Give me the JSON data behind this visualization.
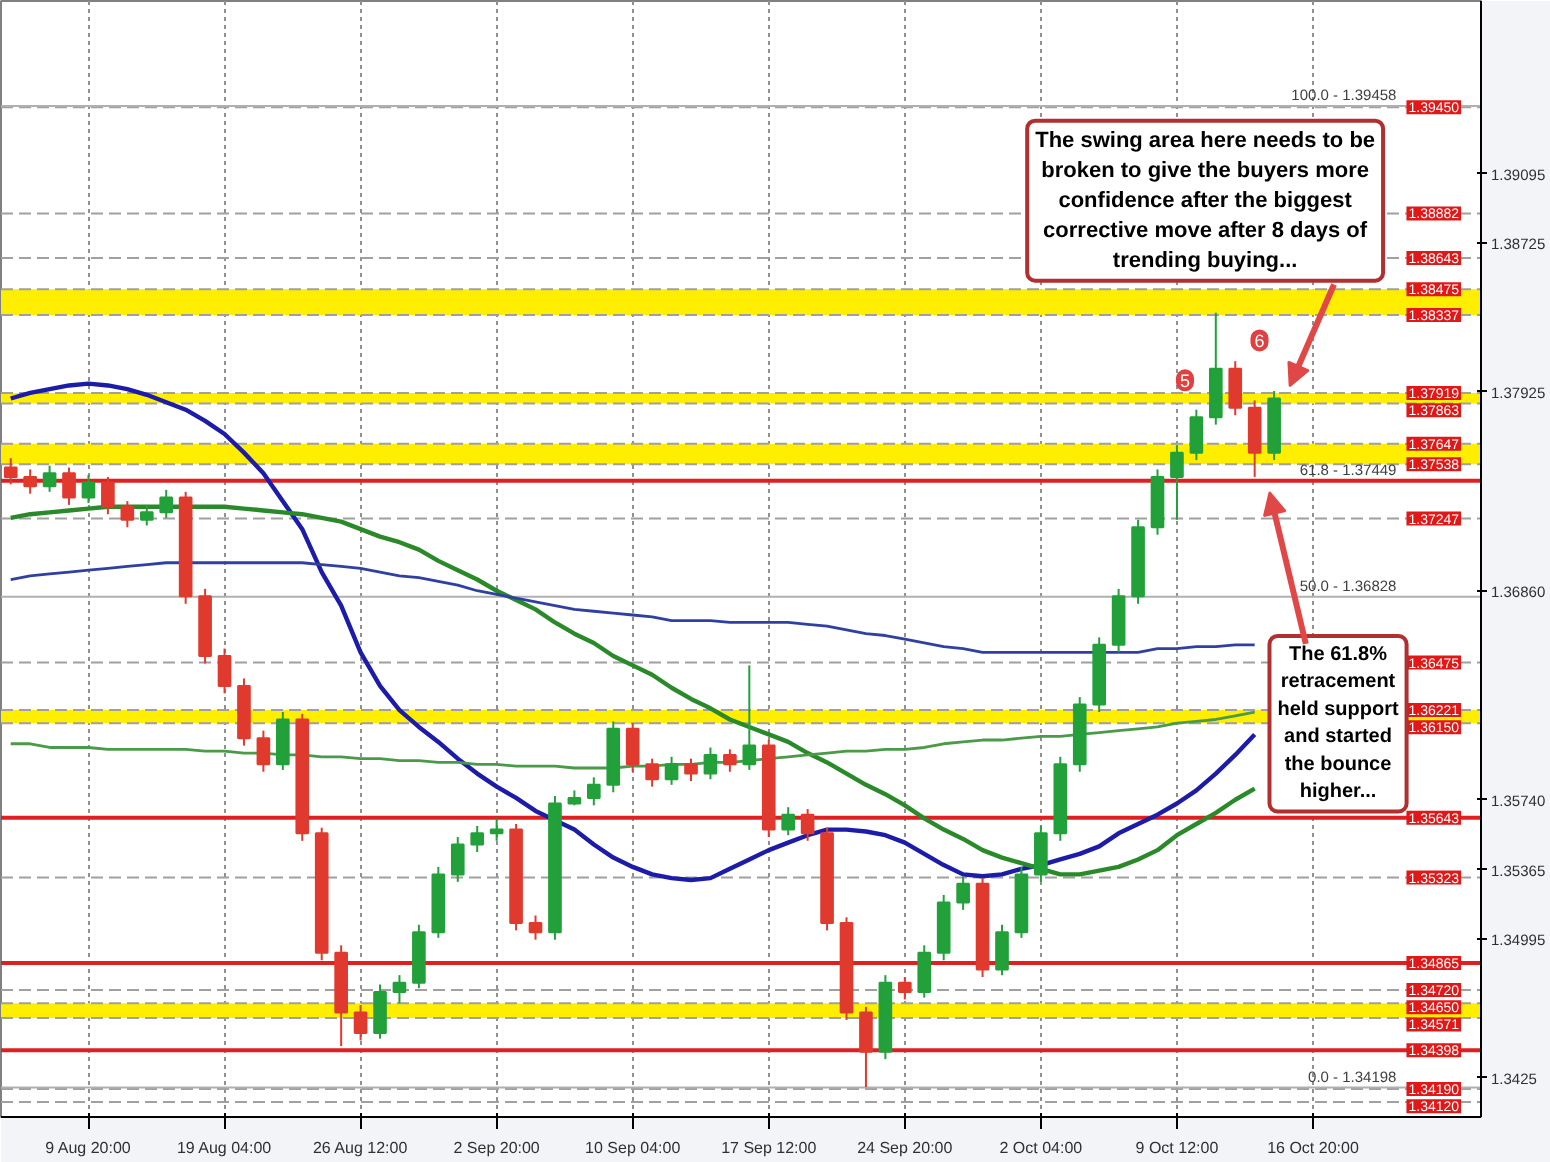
{
  "chart_data": {
    "type": "candlestick",
    "categories": [
      null,
      null,
      null,
      null,
      "9 Aug 20:00",
      null,
      null,
      null,
      null,
      null,
      null,
      "19 Aug 04:00",
      null,
      null,
      null,
      null,
      null,
      null,
      "26 Aug 12:00",
      null,
      null,
      null,
      null,
      null,
      null,
      "2 Sep 20:00",
      null,
      null,
      null,
      null,
      null,
      null,
      "10 Sep 04:00",
      null,
      null,
      null,
      null,
      null,
      null,
      "17 Sep 12:00",
      null,
      null,
      null,
      null,
      null,
      null,
      "24 Sep 20:00",
      null,
      null,
      null,
      null,
      null,
      null,
      "2 Oct 04:00",
      null,
      null,
      null,
      null,
      null,
      null,
      "9 Oct 12:00",
      null,
      null,
      null,
      null,
      null,
      null,
      "16 Oct 20:00",
      null,
      null,
      null,
      null
    ],
    "ohlc": [
      [
        1.3752,
        1.3757,
        1.3743,
        1.3747
      ],
      [
        1.3747,
        1.3751,
        1.3738,
        1.3742
      ],
      [
        1.3742,
        1.3753,
        1.3739,
        1.3749
      ],
      [
        1.3749,
        1.3752,
        1.3732,
        1.3736
      ],
      [
        1.3736,
        1.3748,
        1.3733,
        1.3744
      ],
      [
        1.3744,
        1.3747,
        1.3727,
        1.3731
      ],
      [
        1.3731,
        1.3734,
        1.372,
        1.3724
      ],
      [
        1.3724,
        1.3732,
        1.3721,
        1.3728
      ],
      [
        1.3728,
        1.374,
        1.3725,
        1.3736
      ],
      [
        1.3736,
        1.3739,
        1.3679,
        1.3683
      ],
      [
        1.3683,
        1.3687,
        1.3647,
        1.3651
      ],
      [
        1.3651,
        1.3655,
        1.3631,
        1.3635
      ],
      [
        1.3635,
        1.3639,
        1.3603,
        1.3607
      ],
      [
        1.3607,
        1.3611,
        1.3589,
        1.3593
      ],
      [
        1.3593,
        1.3621,
        1.359,
        1.3617
      ],
      [
        1.3617,
        1.362,
        1.3552,
        1.3556
      ],
      [
        1.3556,
        1.3559,
        1.3488,
        1.3492
      ],
      [
        1.3492,
        1.3496,
        1.3442,
        1.346
      ],
      [
        1.346,
        1.3464,
        1.3445,
        1.3449
      ],
      [
        1.3449,
        1.3475,
        1.3446,
        1.3471
      ],
      [
        1.3471,
        1.348,
        1.3465,
        1.3476
      ],
      [
        1.3476,
        1.3507,
        1.3473,
        1.3503
      ],
      [
        1.3503,
        1.3538,
        1.35,
        1.3534
      ],
      [
        1.3534,
        1.3554,
        1.353,
        1.355
      ],
      [
        1.355,
        1.356,
        1.3546,
        1.3556
      ],
      [
        1.3556,
        1.3564,
        1.3552,
        1.3558
      ],
      [
        1.3558,
        1.3561,
        1.3504,
        1.3508
      ],
      [
        1.3508,
        1.3512,
        1.3499,
        1.3503
      ],
      [
        1.3503,
        1.3576,
        1.3499,
        1.3572
      ],
      [
        1.3572,
        1.3579,
        1.3571,
        1.3575
      ],
      [
        1.3575,
        1.3586,
        1.3571,
        1.3582
      ],
      [
        1.3582,
        1.3616,
        1.3578,
        1.3612
      ],
      [
        1.3612,
        1.3615,
        1.3589,
        1.3593
      ],
      [
        1.3593,
        1.3596,
        1.3581,
        1.3585
      ],
      [
        1.3585,
        1.3597,
        1.3582,
        1.3593
      ],
      [
        1.3593,
        1.3596,
        1.3584,
        1.3588
      ],
      [
        1.3588,
        1.3602,
        1.3585,
        1.3598
      ],
      [
        1.3598,
        1.3601,
        1.3589,
        1.3593
      ],
      [
        1.3593,
        1.3646,
        1.359,
        1.3603
      ],
      [
        1.3603,
        1.3606,
        1.3554,
        1.3558
      ],
      [
        1.3558,
        1.357,
        1.3555,
        1.3566
      ],
      [
        1.3566,
        1.3569,
        1.3552,
        1.3556
      ],
      [
        1.3556,
        1.3559,
        1.3504,
        1.3508
      ],
      [
        1.3508,
        1.3511,
        1.3456,
        1.346
      ],
      [
        1.346,
        1.3463,
        1.342,
        1.3439
      ],
      [
        1.3439,
        1.348,
        1.3435,
        1.3476
      ],
      [
        1.3476,
        1.3479,
        1.3467,
        1.3471
      ],
      [
        1.3471,
        1.3496,
        1.3468,
        1.3492
      ],
      [
        1.3492,
        1.3523,
        1.3488,
        1.3519
      ],
      [
        1.3519,
        1.3533,
        1.3515,
        1.3529
      ],
      [
        1.3529,
        1.3532,
        1.3479,
        1.3483
      ],
      [
        1.3483,
        1.3507,
        1.348,
        1.3503
      ],
      [
        1.3503,
        1.3538,
        1.35,
        1.3534
      ],
      [
        1.3534,
        1.356,
        1.353,
        1.3556
      ],
      [
        1.3556,
        1.3597,
        1.3552,
        1.3593
      ],
      [
        1.3593,
        1.3629,
        1.3589,
        1.3625
      ],
      [
        1.3625,
        1.3661,
        1.3621,
        1.3657
      ],
      [
        1.3657,
        1.3687,
        1.3653,
        1.3683
      ],
      [
        1.3683,
        1.3724,
        1.3679,
        1.372
      ],
      [
        1.372,
        1.3751,
        1.3716,
        1.3747
      ],
      [
        1.3747,
        1.3764,
        1.3724,
        1.376
      ],
      [
        1.376,
        1.3783,
        1.3756,
        1.3779
      ],
      [
        1.3779,
        1.3835,
        1.3775,
        1.3805
      ],
      [
        1.3805,
        1.3809,
        1.378,
        1.3784
      ],
      [
        1.3784,
        1.3788,
        1.3747,
        1.376
      ],
      [
        1.376,
        1.3793,
        1.3756,
        1.3789
      ],
      null,
      null,
      null,
      null,
      null,
      null
    ],
    "series": [
      {
        "type": "line",
        "color": "#1c1ca8",
        "values": [
          1.3789,
          1.3792,
          1.3794,
          1.3796,
          1.3797,
          1.3796,
          1.3794,
          1.3791,
          1.3787,
          1.3783,
          1.3777,
          1.377,
          1.376,
          1.3749,
          1.3734,
          1.3719,
          1.3696,
          1.3678,
          1.3653,
          1.3635,
          1.3622,
          1.3613,
          1.3605,
          1.3596,
          1.3588,
          1.3581,
          1.3575,
          1.3568,
          1.3563,
          1.3558,
          1.355,
          1.3543,
          1.3538,
          1.3534,
          1.3532,
          1.3531,
          1.3532,
          1.3537,
          1.3542,
          1.3547,
          1.3551,
          1.3555,
          1.3558,
          1.3558,
          1.3557,
          1.3555,
          1.3551,
          1.3545,
          1.3539,
          1.3534,
          1.3533,
          1.3534,
          1.3537,
          1.3539,
          1.3542,
          1.3545,
          1.3549,
          1.3556,
          1.3561,
          1.3566,
          1.3572,
          1.3579,
          1.3588,
          1.3598,
          1.3609,
          null,
          null,
          null,
          null,
          null,
          null,
          null
        ]
      },
      {
        "type": "line",
        "color": "#2a8a2a",
        "values": [
          1.3725,
          1.3727,
          1.3728,
          1.3729,
          1.373,
          1.3731,
          1.3731,
          1.3731,
          1.3731,
          1.3731,
          1.3731,
          1.3731,
          1.373,
          1.3729,
          1.3728,
          1.3727,
          1.3725,
          1.3723,
          1.3719,
          1.3715,
          1.3712,
          1.3708,
          1.3702,
          1.3697,
          1.3692,
          1.3686,
          1.3681,
          1.3676,
          1.3669,
          1.3663,
          1.3658,
          1.3651,
          1.3646,
          1.3641,
          1.3634,
          1.3628,
          1.3623,
          1.3617,
          1.3613,
          1.3609,
          1.3605,
          1.3599,
          1.3594,
          1.3588,
          1.3582,
          1.3577,
          1.3571,
          1.3564,
          1.3558,
          1.3553,
          1.3547,
          1.3543,
          1.354,
          1.3537,
          1.3534,
          1.3534,
          1.3536,
          1.3538,
          1.3542,
          1.3547,
          1.3555,
          1.3561,
          1.3567,
          1.3574,
          1.358,
          null,
          null,
          null,
          null,
          null,
          null,
          null
        ]
      },
      {
        "type": "line",
        "color": "#3040a0",
        "values": [
          1.3692,
          1.3694,
          1.3695,
          1.3696,
          1.3697,
          1.3698,
          1.3699,
          1.37,
          1.3701,
          1.3701,
          1.3701,
          1.3701,
          1.3701,
          1.3701,
          1.3701,
          1.3701,
          1.37,
          1.3699,
          1.3698,
          1.3696,
          1.3694,
          1.3693,
          1.3691,
          1.3689,
          1.3686,
          1.3684,
          1.3682,
          1.368,
          1.3678,
          1.3676,
          1.3675,
          1.3674,
          1.3673,
          1.3672,
          1.367,
          1.367,
          1.367,
          1.3669,
          1.3669,
          1.3669,
          1.3669,
          1.3668,
          1.3667,
          1.3665,
          1.3663,
          1.3662,
          1.366,
          1.3658,
          1.3656,
          1.3655,
          1.3653,
          1.3653,
          1.3653,
          1.3653,
          1.3653,
          1.3653,
          1.3653,
          1.3653,
          1.3653,
          1.3655,
          1.3655,
          1.3656,
          1.3656,
          1.3657,
          1.3657,
          null,
          null,
          null,
          null,
          null,
          null,
          null
        ]
      },
      {
        "type": "line",
        "color": "#4a9a4a",
        "values": [
          1.3604,
          1.3604,
          1.3602,
          1.3602,
          1.3602,
          1.3601,
          1.3601,
          1.3601,
          1.3601,
          1.3601,
          1.36,
          1.36,
          1.3599,
          1.3599,
          1.3598,
          1.3598,
          1.3597,
          1.3597,
          1.3596,
          1.3596,
          1.3595,
          1.3595,
          1.3594,
          1.3594,
          1.3593,
          1.3593,
          1.3592,
          1.3592,
          1.3592,
          1.3591,
          1.3591,
          1.3591,
          1.3592,
          1.3592,
          1.3593,
          1.3593,
          1.3594,
          1.3594,
          1.3595,
          1.3596,
          1.3597,
          1.3598,
          1.3599,
          1.36,
          1.36,
          1.3601,
          1.3601,
          1.3602,
          1.3604,
          1.3605,
          1.3606,
          1.3606,
          1.3607,
          1.3608,
          1.3608,
          1.3609,
          1.361,
          1.3611,
          1.3612,
          1.3613,
          1.3615,
          1.3616,
          1.3617,
          1.3619,
          1.3621,
          null,
          null,
          null,
          null,
          null,
          null,
          null
        ]
      }
    ],
    "ylim": [
      1.3404,
      1.4002
    ],
    "yticks": [
      1.39095,
      1.38725,
      1.37925,
      {
        "value": 1.3686,
        "label": "1.36860"
      },
      {
        "value": 1.3574,
        "label": "1.35740"
      },
      1.35365,
      1.34995,
      1.3425
    ],
    "grid": "x",
    "bands": [
      {
        "axis": "y",
        "from": 1.38337,
        "to": 1.38475,
        "color": "#ffee00"
      },
      {
        "axis": "y",
        "from": 1.37863,
        "to": 1.37919,
        "color": "#ffee00"
      },
      {
        "axis": "y",
        "from": 1.37538,
        "to": 1.37647,
        "color": "#ffee00"
      },
      {
        "axis": "y",
        "from": 1.3615,
        "to": 1.36221,
        "color": "#ffee00"
      },
      {
        "axis": "y",
        "from": 1.34571,
        "to": 1.3465,
        "color": "#ffee00"
      }
    ],
    "ref_lines": [
      {
        "axis": "y",
        "value": 1.3945,
        "label": "1.39450",
        "color": "#a0a0a0",
        "line_style": "dashed"
      },
      {
        "axis": "y",
        "value": 1.38882,
        "label": "1.38882",
        "color": "#a0a0a0",
        "line_style": "dashed"
      },
      {
        "axis": "y",
        "value": 1.38643,
        "label": "1.38643",
        "color": "#a0a0a0",
        "line_style": "dashed"
      },
      {
        "axis": "y",
        "value": 1.38475,
        "label": "1.38475",
        "color": "#a0a0a0",
        "line_style": "dashed"
      },
      {
        "axis": "y",
        "value": 1.38337,
        "label": "1.38337",
        "color": "#a0a0a0",
        "line_style": "dashed"
      },
      {
        "axis": "y",
        "value": 1.37919,
        "label": "1.37919",
        "color": "#a0a0a0",
        "line_style": "dashed"
      },
      {
        "axis": "y",
        "value": 1.37863,
        "label": "1.37863",
        "color": "#a0a0a0",
        "line_style": "dashed"
      },
      {
        "axis": "y",
        "value": 1.37647,
        "label": "1.37647",
        "color": "#a0a0a0",
        "line_style": "dashed"
      },
      {
        "axis": "y",
        "value": 1.37538,
        "label": "1.37538",
        "color": "#a0a0a0",
        "line_style": "dashed"
      },
      {
        "axis": "y",
        "value": 1.37247,
        "label": "1.37247",
        "color": "#a0a0a0",
        "line_style": "dashed"
      },
      {
        "axis": "y",
        "value": 1.36475,
        "label": "1.36475",
        "color": "#a0a0a0",
        "line_style": "dashed"
      },
      {
        "axis": "y",
        "value": 1.36221,
        "label": "1.36221",
        "color": "#a0a0a0",
        "line_style": "dashed"
      },
      {
        "axis": "y",
        "value": 1.3615,
        "label": "1.36150",
        "color": "#a0a0a0",
        "line_style": "dashed"
      },
      {
        "axis": "y",
        "value": 1.35643,
        "label": "1.35643",
        "color": "#e02020",
        "line_style": "solid"
      },
      {
        "axis": "y",
        "value": 1.35323,
        "label": "1.35323",
        "color": "#a0a0a0",
        "line_style": "dashed"
      },
      {
        "axis": "y",
        "value": 1.34865,
        "label": "1.34865",
        "color": "#e02020",
        "line_style": "solid"
      },
      {
        "axis": "y",
        "value": 1.3472,
        "label": "1.34720",
        "color": "#a0a0a0",
        "line_style": "dashed"
      },
      {
        "axis": "y",
        "value": 1.3465,
        "label": "1.34650",
        "color": "#a0a0a0",
        "line_style": "dashed"
      },
      {
        "axis": "y",
        "value": 1.34571,
        "label": "1.34571",
        "color": "#a0a0a0",
        "line_style": "dashed"
      },
      {
        "axis": "y",
        "value": 1.34398,
        "label": "1.34398",
        "color": "#e02020",
        "line_style": "solid"
      },
      {
        "axis": "y",
        "value": 1.3419,
        "label": "1.34190",
        "color": "#a0a0a0",
        "line_style": "dashed"
      },
      {
        "axis": "y",
        "value": 1.3412,
        "label": "1.34120",
        "color": "#a0a0a0",
        "line_style": "dashed"
      },
      {
        "axis": "y",
        "value": 1.39458,
        "color": "#b0b0b0",
        "line_style": "solid"
      },
      {
        "axis": "y",
        "value": 1.37449,
        "color": "#e02020",
        "line_style": "solid"
      },
      {
        "axis": "y",
        "value": 1.36828,
        "color": "#b0b0b0",
        "line_style": "solid"
      },
      {
        "axis": "y",
        "value": 1.34198,
        "color": "#b0b0b0",
        "line_style": "solid"
      }
    ],
    "annotations": [
      "The swing area here needs to be broken to give the buyers more confidence after the biggest corrective move after 8 days of trending buying...",
      "The 61.8% retracement held support and started the bounce higher...",
      "5",
      "6",
      {
        "text": "100.0 - 1.39458",
        "y": 1.39458
      },
      {
        "text": "61.8 - 1.37449",
        "y": 1.37449
      },
      {
        "text": "50.0 - 1.36828",
        "y": 1.36828
      },
      {
        "text": "0.0 - 1.34198",
        "y": 1.34198
      }
    ]
  }
}
